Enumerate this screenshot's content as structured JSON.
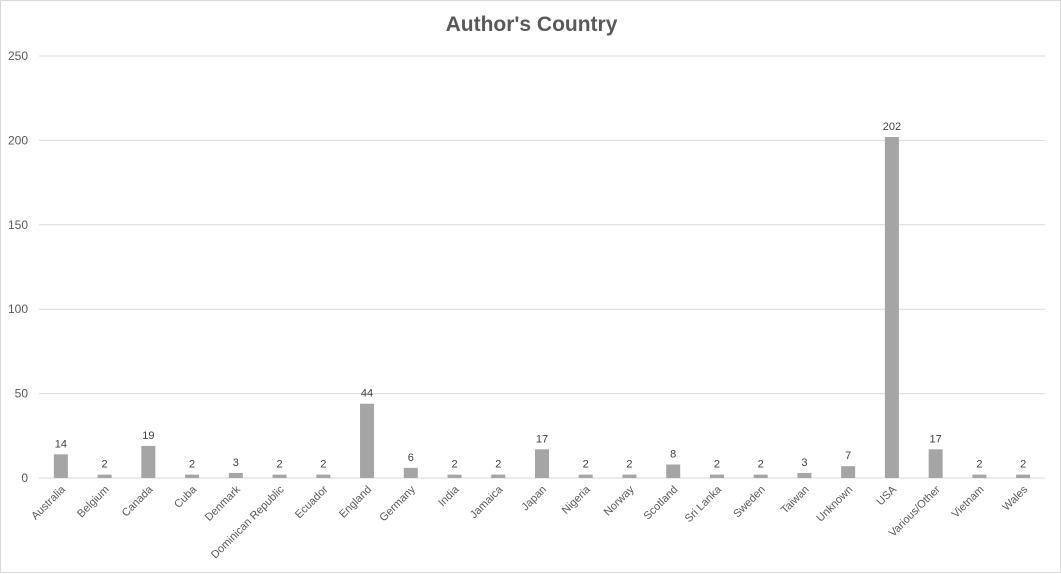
{
  "chart_data": {
    "type": "bar",
    "title": "Author's Country",
    "xlabel": "",
    "ylabel": "",
    "ylim": [
      0,
      250
    ],
    "yticks": [
      0,
      50,
      100,
      150,
      200,
      250
    ],
    "grid": true,
    "legend": "none",
    "bar_color": "#a5a5a5",
    "grid_color": "#d9d9d9",
    "categories": [
      "Australia",
      "Belgium",
      "Canada",
      "Cuba",
      "Denmark",
      "Dominican Republic",
      "Ecuador",
      "England",
      "Germany",
      "India",
      "Jamaica",
      "Japan",
      "Nigeria",
      "Norway",
      "Scotland",
      "Sri Lanka",
      "Sweden",
      "Taiwan",
      "Unknown",
      "USA",
      "Various/Other",
      "Vietnam",
      "Wales"
    ],
    "values": [
      14,
      2,
      19,
      2,
      3,
      2,
      2,
      44,
      6,
      2,
      2,
      17,
      2,
      2,
      8,
      2,
      2,
      3,
      7,
      202,
      17,
      2,
      2
    ]
  }
}
